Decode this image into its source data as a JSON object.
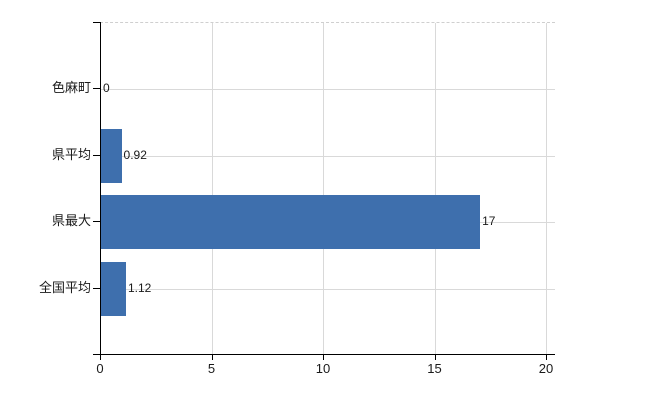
{
  "chart_data": {
    "type": "bar",
    "orientation": "horizontal",
    "categories": [
      "色麻町",
      "県平均",
      "県最大",
      "全国平均"
    ],
    "values": [
      0,
      0.92,
      17,
      1.12
    ],
    "value_labels": [
      "0",
      "0.92",
      "17",
      "1.12"
    ],
    "x_ticks": [
      0,
      5,
      10,
      15,
      20
    ],
    "xlim": [
      0,
      20
    ],
    "grid": true,
    "legend": false,
    "colors": {
      "bar": "#3e6fad",
      "grid": "#d9d9d9",
      "plot_border": "#cfcfcf",
      "axis": "#000000",
      "text": "#1a1a1a",
      "background": "#ffffff"
    }
  }
}
